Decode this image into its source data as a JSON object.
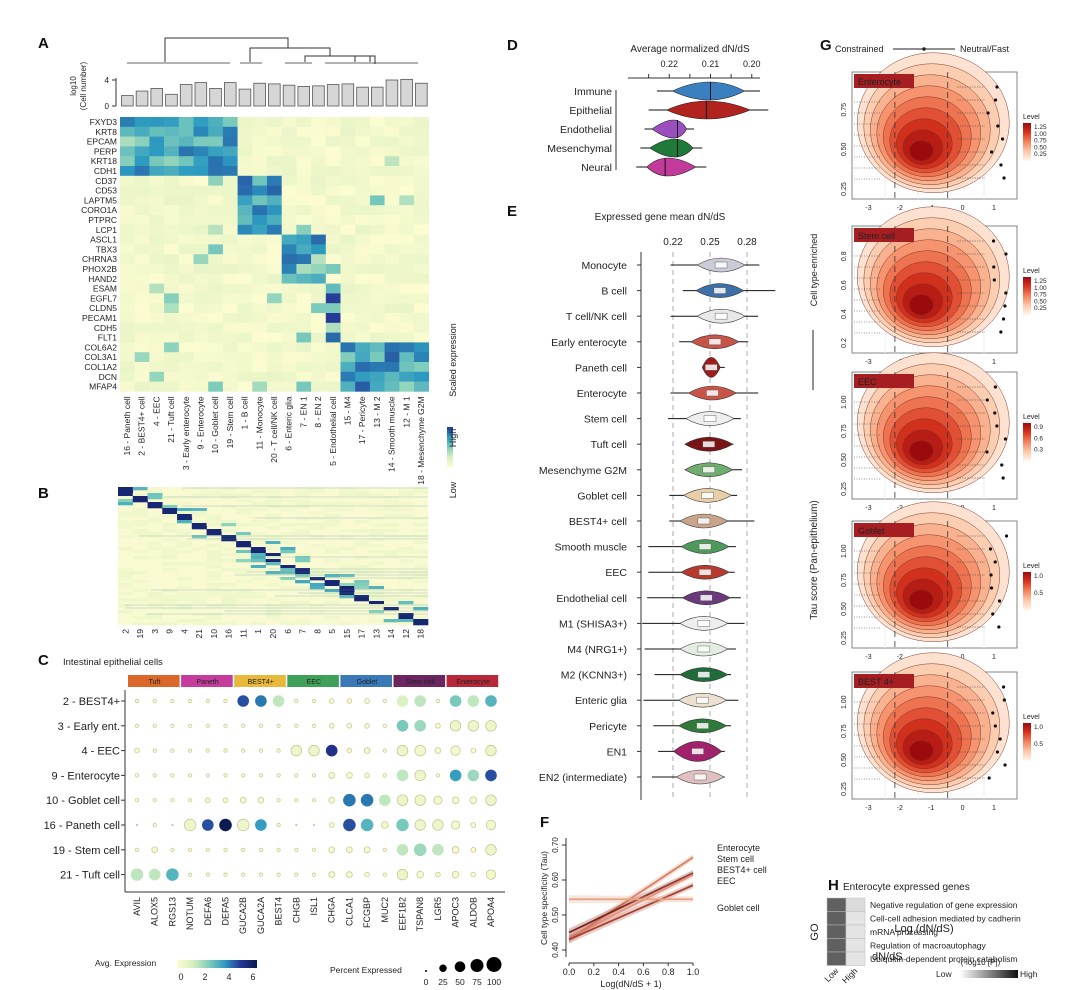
{
  "panel_labels": [
    "A",
    "B",
    "C",
    "D",
    "E",
    "F",
    "G",
    "H"
  ],
  "chart_data": [
    {
      "panel": "A",
      "type": "heatmap",
      "title": "",
      "bar_ylabel": "log10 (Cell number)",
      "bar_yticks": [
        "0",
        "4"
      ],
      "bar_ylim": [
        0,
        4.5
      ],
      "legend_title": "Scaled expression",
      "legend_high": "High",
      "legend_low": "Low",
      "clusters": [
        "16 - Paneth cell",
        "2 - BEST4+ cell",
        "4 - EEC",
        "21 - Tuft cell",
        "3 - Early enterocyte",
        "9 - Enterocyte",
        "10 - Goblet cell",
        "19 - Stem cell",
        "1 - B cell",
        "11 - Monocyte",
        "20 - T cell/NK cell",
        "6 - Enteric glia",
        "7 - EN 1",
        "8 - EN 2",
        "5 - Endothelial cell",
        "15 - M4",
        "17 - Pericyte",
        "13 - M 2",
        "14 - Smooth muscle",
        "12 - M 1",
        "18 - Mesenchyme G2M"
      ],
      "cell_numbers_log10": [
        1.6,
        2.3,
        2.7,
        1.8,
        3.3,
        3.6,
        2.7,
        3.6,
        2.6,
        3.5,
        3.4,
        3.2,
        3.0,
        3.1,
        3.3,
        3.4,
        2.9,
        2.9,
        4.0,
        4.1,
        3.5
      ],
      "genes": [
        "FXYD3",
        "KRT8",
        "EPCAM",
        "PERP",
        "KRT18",
        "CDH1",
        "CD37",
        "CD53",
        "LAPTM5",
        "CORO1A",
        "PTPRC",
        "LCP1",
        "ASCL1",
        "TBX3",
        "CHRNA3",
        "PHOX2B",
        "HAND2",
        "ESAM",
        "EGFL7",
        "CLDN5",
        "PECAM1",
        "CDH5",
        "FLT1",
        "COL6A2",
        "COL3A1",
        "COL1A2",
        "DCN",
        "MFAP4"
      ],
      "blocks": [
        {
          "genes": [
            0,
            5
          ],
          "clusters": [
            0,
            7
          ],
          "level": 0.8
        },
        {
          "genes": [
            6,
            11
          ],
          "clusters": [
            8,
            10
          ],
          "level": 0.85
        },
        {
          "genes": [
            12,
            16
          ],
          "clusters": [
            11,
            13
          ],
          "level": 0.85
        },
        {
          "genes": [
            17,
            22
          ],
          "clusters": [
            14,
            14
          ],
          "level": 1.0
        },
        {
          "genes": [
            23,
            27
          ],
          "clusters": [
            15,
            20
          ],
          "level": 0.85
        }
      ],
      "scale_range": [
        0,
        1
      ]
    },
    {
      "panel": "B",
      "type": "heatmap",
      "column_labels": [
        "2",
        "19",
        "3",
        "9",
        "4",
        "21",
        "10",
        "16",
        "11",
        "1",
        "20",
        "6",
        "7",
        "8",
        "5",
        "15",
        "17",
        "13",
        "14",
        "12",
        "18"
      ],
      "scale_range": [
        0,
        1
      ]
    },
    {
      "panel": "C",
      "type": "scatter",
      "subtype": "dot-plot",
      "title": "Intestinal epithelial cells",
      "groups": [
        {
          "label": "Tuft",
          "color": "#d9682a",
          "span": 3
        },
        {
          "label": "Paneth",
          "color": "#c43c9c",
          "span": 3
        },
        {
          "label": "BEST4+",
          "color": "#e8b83a",
          "span": 3
        },
        {
          "label": "EEC",
          "color": "#3fa05a",
          "span": 3
        },
        {
          "label": "Goblet",
          "color": "#3a78b8",
          "span": 3
        },
        {
          "label": "Stem cell",
          "color": "#6b2560",
          "span": 3
        },
        {
          "label": "Enterocyte",
          "color": "#b8283a",
          "span": 3
        }
      ],
      "rows": [
        "2 - BEST4+",
        "3 - Early ent.",
        "4 - EEC",
        "9 - Enterocyte",
        "10 - Goblet cell",
        "16 - Paneth cell",
        "19 - Stem cell",
        "21 - Tuft cell"
      ],
      "genes": [
        "AVIL",
        "ALOX5",
        "RGS13",
        "NOTUM",
        "DEFA6",
        "DEFA5",
        "GUCA2B",
        "GUCA2A",
        "BEST4",
        "CHGB",
        "ISL1",
        "CHGA",
        "CLCA1",
        "FCGBP",
        "MUC2",
        "EEF1B2",
        "TSPAN8",
        "LGR5",
        "APOC3",
        "ALDOB",
        "APOA4"
      ],
      "avg_expression": [
        [
          0,
          0,
          0,
          0,
          0,
          0,
          4.5,
          4,
          1.5,
          0,
          0,
          0.2,
          0.2,
          0.2,
          0,
          1,
          1.5,
          0,
          2.5,
          1.5,
          3
        ],
        [
          0,
          0,
          0,
          0,
          0,
          0,
          0,
          0,
          0,
          0,
          0,
          0.2,
          0.2,
          0.2,
          0,
          2.5,
          2,
          0,
          0.5,
          0.5,
          0.5
        ],
        [
          0.2,
          0,
          0,
          0,
          0,
          0,
          0,
          0,
          0,
          0.5,
          0.5,
          5,
          0.2,
          0.3,
          0,
          0.5,
          0.3,
          0.2,
          0.3,
          0,
          0.5
        ],
        [
          0,
          0,
          0,
          0,
          0,
          0,
          0,
          0,
          0,
          0,
          0,
          0.2,
          0.2,
          0.2,
          0,
          1.5,
          0.5,
          0,
          3.5,
          2,
          4.5
        ],
        [
          0,
          0,
          0,
          0,
          0.2,
          0.2,
          0.2,
          0.2,
          0,
          0,
          0,
          0.2,
          4,
          4,
          1.5,
          0.5,
          0.5,
          0.3,
          0.2,
          0.2,
          0.5
        ],
        [
          0,
          0,
          0,
          0.5,
          4.5,
          6,
          0.5,
          3.5,
          0,
          0,
          0,
          0.2,
          4.5,
          3,
          0.2,
          2.5,
          0.5,
          0.5,
          0.2,
          0,
          0.3
        ],
        [
          0,
          0.2,
          0,
          0,
          0,
          0,
          0,
          0,
          0,
          0,
          0,
          0.2,
          0.2,
          0.2,
          0,
          1.5,
          2,
          1.5,
          0.2,
          0,
          0.5
        ],
        [
          1.5,
          1.5,
          3,
          0,
          0,
          0,
          0,
          0,
          0,
          0,
          0,
          0.2,
          0.2,
          0,
          0,
          0.5,
          0.2,
          0.2,
          0.2,
          0,
          0.3
        ]
      ],
      "pct_expressed": [
        [
          5,
          5,
          5,
          5,
          5,
          5,
          60,
          60,
          60,
          5,
          5,
          10,
          10,
          10,
          5,
          60,
          60,
          5,
          60,
          60,
          60
        ],
        [
          5,
          5,
          5,
          5,
          5,
          5,
          5,
          5,
          5,
          5,
          5,
          10,
          10,
          10,
          5,
          60,
          60,
          10,
          50,
          50,
          50
        ],
        [
          10,
          5,
          5,
          5,
          5,
          5,
          5,
          5,
          5,
          50,
          50,
          60,
          10,
          15,
          5,
          50,
          50,
          15,
          40,
          10,
          50
        ],
        [
          5,
          5,
          5,
          5,
          5,
          5,
          5,
          5,
          5,
          5,
          5,
          15,
          15,
          10,
          5,
          60,
          50,
          5,
          60,
          60,
          60
        ],
        [
          5,
          5,
          5,
          5,
          10,
          10,
          15,
          15,
          5,
          5,
          5,
          15,
          70,
          70,
          60,
          50,
          50,
          30,
          20,
          20,
          50
        ],
        [
          0,
          5,
          0,
          60,
          60,
          70,
          60,
          60,
          5,
          0,
          0,
          10,
          70,
          70,
          20,
          70,
          50,
          50,
          30,
          10,
          40
        ],
        [
          5,
          15,
          5,
          5,
          5,
          5,
          5,
          5,
          5,
          5,
          5,
          15,
          15,
          15,
          5,
          60,
          70,
          60,
          20,
          10,
          50
        ],
        [
          70,
          60,
          70,
          5,
          5,
          5,
          5,
          5,
          5,
          5,
          5,
          15,
          15,
          10,
          5,
          50,
          20,
          10,
          20,
          10,
          40
        ]
      ],
      "legend_color_title": "Avg. Expression",
      "legend_color_ticks": [
        "0",
        "2",
        "4",
        "6"
      ],
      "legend_size_title": "Percent Expressed",
      "legend_size_ticks": [
        "0",
        "25",
        "50",
        "75",
        "100"
      ]
    },
    {
      "panel": "D",
      "type": "violin",
      "title": "Average normalized dN/dS",
      "xtick_labels": [
        "0.22",
        "0.21",
        "0.20"
      ],
      "categories": [
        "Immune",
        "Epithelial",
        "Endothelial",
        "Mesenchymal",
        "Neural"
      ],
      "colors": [
        "#3a7fc0",
        "#b0231f",
        "#9b4fbf",
        "#1f7a3a",
        "#c23a9a"
      ],
      "medians": [
        0.21,
        0.211,
        0.218,
        0.218,
        0.221
      ],
      "ranges": [
        [
          0.223,
          0.198
        ],
        [
          0.225,
          0.196
        ],
        [
          0.226,
          0.214
        ],
        [
          0.227,
          0.212
        ],
        [
          0.228,
          0.211
        ]
      ],
      "xlim": [
        0.23,
        0.198
      ],
      "reversed_axis": true
    },
    {
      "panel": "E",
      "type": "violin",
      "title": "Expressed gene mean dN/dS",
      "xtick_labels": [
        "0.22",
        "0.25",
        "0.28"
      ],
      "xlim": [
        0.19,
        0.3
      ],
      "categories": [
        "Monocyte",
        "B cell",
        "T cell/NK cell",
        "Early enterocyte",
        "Paneth cell",
        "Enterocyte",
        "Stem cell",
        "Tuft cell",
        "Mesenchyme G2M",
        "Goblet cell",
        "BEST4+ cell",
        "Smooth muscle",
        "EEC",
        "Endothelial cell",
        "M1 (SHISA3+)",
        "M4 (NRG1+)",
        "M2 (KCNN3+)",
        "Enteric glia",
        "Pericyte",
        "EN1",
        "EN2 (intermediate)"
      ],
      "colors": [
        "#c9ccd6",
        "#3d6fa8",
        "#e8e8e8",
        "#c85448",
        "#a01c1c",
        "#c85448",
        "#eeeeee",
        "#7a1414",
        "#6fae6f",
        "#e8cfa8",
        "#c9a48a",
        "#4f9a5a",
        "#b83a2e",
        "#6a3a7a",
        "#eeeeee",
        "#e4ecdf",
        "#1f6b3a",
        "#eee0d0",
        "#2f7a3a",
        "#a0226a",
        "#e0c0c0"
      ],
      "medians": [
        0.259,
        0.258,
        0.259,
        0.254,
        0.251,
        0.252,
        0.25,
        0.249,
        0.249,
        0.248,
        0.245,
        0.246,
        0.246,
        0.247,
        0.245,
        0.245,
        0.245,
        0.244,
        0.244,
        0.24,
        0.242
      ],
      "ranges": [
        [
          0.218,
          0.29
        ],
        [
          0.228,
          0.303
        ],
        [
          0.218,
          0.289
        ],
        [
          0.225,
          0.281
        ],
        [
          0.244,
          0.262
        ],
        [
          0.218,
          0.289
        ],
        [
          0.216,
          0.275
        ],
        [
          0.232,
          0.269
        ],
        [
          0.232,
          0.276
        ],
        [
          0.217,
          0.272
        ],
        [
          0.217,
          0.286
        ],
        [
          0.2,
          0.271
        ],
        [
          0.2,
          0.27
        ],
        [
          0.199,
          0.275
        ],
        [
          0.195,
          0.278
        ],
        [
          0.197,
          0.271
        ],
        [
          0.205,
          0.267
        ],
        [
          0.196,
          0.273
        ],
        [
          0.204,
          0.267
        ],
        [
          0.208,
          0.262
        ],
        [
          0.203,
          0.262
        ]
      ]
    },
    {
      "panel": "F",
      "type": "line",
      "xlabel": "Log(dN/dS + 1)",
      "ylabel": "Cell type specificity (Tau)",
      "xlim": [
        0.0,
        1.0
      ],
      "ylim": [
        0.38,
        0.72
      ],
      "xticks": [
        "0.0",
        "0.2",
        "0.4",
        "0.6",
        "0.8",
        "1.0"
      ],
      "yticks": [
        "0.40",
        "0.50",
        "0.60",
        "0.70"
      ],
      "series": [
        {
          "name": "Enterocyte",
          "x": [
            0.0,
            1.0
          ],
          "y": [
            0.43,
            0.665
          ],
          "color": "#d98060"
        },
        {
          "name": "Stem cell",
          "x": [
            0.0,
            1.0
          ],
          "y": [
            0.45,
            0.62
          ],
          "color": "#7a1f18"
        },
        {
          "name": "BEST4+ cell",
          "x": [
            0.0,
            1.0
          ],
          "y": [
            0.435,
            0.615
          ],
          "color": "#e8907a"
        },
        {
          "name": "EEC",
          "x": [
            0.0,
            1.0
          ],
          "y": [
            0.43,
            0.585
          ],
          "color": "#a8402e"
        },
        {
          "name": "Goblet cell",
          "x": [
            0.0,
            1.0
          ],
          "y": [
            0.545,
            0.545
          ],
          "color": "#e8a080"
        }
      ]
    },
    {
      "panel": "G",
      "type": "heatmap",
      "subtype": "density-contour",
      "header_left": "Constrained",
      "header_right": "Neutral/Fast",
      "xlabel": "Log (dN/dS)",
      "ylabel": "Tau score (Pan-epithelium)",
      "ylabel_right": "Cell type-enriched",
      "xticks": [
        "-3",
        "-2",
        "-1",
        "0",
        "1"
      ],
      "legend_title": "Level",
      "subplots": [
        {
          "name": "Enterocyte",
          "yticks": [
            "0.25",
            "0.50",
            "0.75"
          ],
          "levels": [
            "0.25",
            "0.50",
            "0.75",
            "1.00",
            "1.25"
          ],
          "peak": [
            -1.6,
            0.32
          ]
        },
        {
          "name": "Stem cell",
          "yticks": [
            "0.2",
            "0.4",
            "0.6",
            "0.8"
          ],
          "levels": [
            "0.25",
            "0.50",
            "0.75",
            "1.00",
            "1.25"
          ],
          "peak": [
            -1.5,
            0.42
          ]
        },
        {
          "name": "EEC",
          "yticks": [
            "0.25",
            "0.50",
            "0.75",
            "1.00"
          ],
          "levels": [
            "0.3",
            "0.6",
            "0.9"
          ],
          "peak": [
            -1.5,
            0.35
          ]
        },
        {
          "name": "Goblet",
          "yticks": [
            "0.25",
            "0.50",
            "0.75",
            "1.00"
          ],
          "levels": [
            "0.5",
            "1.0"
          ],
          "peak": [
            -1.6,
            0.38
          ]
        },
        {
          "name": "BEST 4+",
          "yticks": [
            "0.25",
            "0.50",
            "0.75",
            "1.00"
          ],
          "levels": [
            "0.5",
            "1.0"
          ],
          "peak": [
            -1.5,
            0.33
          ]
        }
      ]
    },
    {
      "panel": "H",
      "type": "heatmap",
      "title": "Enterocyte expressed genes",
      "ylabel": "GO",
      "xlabel": "dN/dS",
      "columns": [
        "Low",
        "High"
      ],
      "rows": [
        "Negative regulation of gene expression",
        "Cell-cell adhesion mediated by cadherin",
        "mRNA processing",
        "Regulation of macroautophagy",
        "Ubiquitin-dependent protein catabolism"
      ],
      "values": [
        [
          0.85,
          0.15
        ],
        [
          0.85,
          0.1
        ],
        [
          0.85,
          0.1
        ],
        [
          0.85,
          0.1
        ],
        [
          0.85,
          0.1
        ]
      ],
      "legend_title": "-(-log10 [P])",
      "legend_low": "Low",
      "legend_high": "High"
    }
  ]
}
